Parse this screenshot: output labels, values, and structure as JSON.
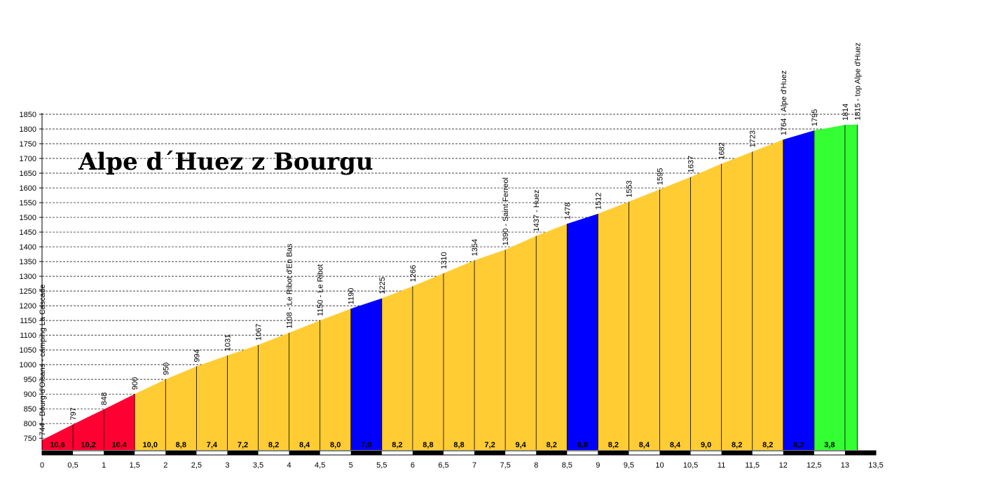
{
  "chart_data": {
    "type": "area",
    "title": "Alpe d´Huez z Bourgu",
    "xlabel": "",
    "ylabel": "",
    "xlim": [
      0,
      13.5
    ],
    "ylim": [
      710,
      1850
    ],
    "yticks": [
      750,
      800,
      850,
      900,
      950,
      1000,
      1050,
      1100,
      1150,
      1200,
      1250,
      1300,
      1350,
      1400,
      1450,
      1500,
      1550,
      1600,
      1650,
      1700,
      1750,
      1800,
      1850
    ],
    "xticks": [
      {
        "v": 0,
        "label": "0"
      },
      {
        "v": 0.5,
        "label": "0,5"
      },
      {
        "v": 1,
        "label": "1"
      },
      {
        "v": 1.5,
        "label": "1,5"
      },
      {
        "v": 2,
        "label": "2"
      },
      {
        "v": 2.5,
        "label": "2,5"
      },
      {
        "v": 3,
        "label": "3"
      },
      {
        "v": 3.5,
        "label": "3,5"
      },
      {
        "v": 4,
        "label": "4"
      },
      {
        "v": 4.5,
        "label": "4,5"
      },
      {
        "v": 5,
        "label": "5"
      },
      {
        "v": 5.5,
        "label": "5,5"
      },
      {
        "v": 6,
        "label": "6"
      },
      {
        "v": 6.5,
        "label": "6,5"
      },
      {
        "v": 7,
        "label": "7"
      },
      {
        "v": 7.5,
        "label": "7,5"
      },
      {
        "v": 8,
        "label": "8"
      },
      {
        "v": 8.5,
        "label": "8,5"
      },
      {
        "v": 9,
        "label": "9"
      },
      {
        "v": 9.5,
        "label": "9,5"
      },
      {
        "v": 10,
        "label": "10"
      },
      {
        "v": 10.5,
        "label": "10,5"
      },
      {
        "v": 11,
        "label": "11"
      },
      {
        "v": 11.5,
        "label": "11,5"
      },
      {
        "v": 12,
        "label": "12"
      },
      {
        "v": 12.5,
        "label": "12,5"
      },
      {
        "v": 13,
        "label": "13"
      },
      {
        "v": 13.5,
        "label": "13,5"
      }
    ],
    "points": [
      {
        "x": 0,
        "y": 744,
        "label": "744 - Bourg d'Oisans - camping La Cascade"
      },
      {
        "x": 0.5,
        "y": 797,
        "label": "797"
      },
      {
        "x": 1,
        "y": 848,
        "label": "848"
      },
      {
        "x": 1.5,
        "y": 900,
        "label": "900"
      },
      {
        "x": 2,
        "y": 950,
        "label": "950"
      },
      {
        "x": 2.5,
        "y": 994,
        "label": "994"
      },
      {
        "x": 3,
        "y": 1031,
        "label": "1031"
      },
      {
        "x": 3.5,
        "y": 1067,
        "label": "1067"
      },
      {
        "x": 4,
        "y": 1108,
        "label": "1108 - Le Ribot d'En Bas"
      },
      {
        "x": 4.5,
        "y": 1150,
        "label": "1150 - Le Ribot"
      },
      {
        "x": 5,
        "y": 1190,
        "label": "1190"
      },
      {
        "x": 5.5,
        "y": 1225,
        "label": "1225"
      },
      {
        "x": 6,
        "y": 1266,
        "label": "1266"
      },
      {
        "x": 6.5,
        "y": 1310,
        "label": "1310"
      },
      {
        "x": 7,
        "y": 1354,
        "label": "1354"
      },
      {
        "x": 7.5,
        "y": 1390,
        "label": "1390 - Saint Ferreol"
      },
      {
        "x": 8,
        "y": 1437,
        "label": "1437 - Huez"
      },
      {
        "x": 8.5,
        "y": 1478,
        "label": "1478"
      },
      {
        "x": 9,
        "y": 1512,
        "label": "1512"
      },
      {
        "x": 9.5,
        "y": 1553,
        "label": "1553"
      },
      {
        "x": 10,
        "y": 1595,
        "label": "1595"
      },
      {
        "x": 10.5,
        "y": 1637,
        "label": "1637"
      },
      {
        "x": 11,
        "y": 1682,
        "label": "1682"
      },
      {
        "x": 11.5,
        "y": 1723,
        "label": "1723"
      },
      {
        "x": 12,
        "y": 1764,
        "label": "1764 - Alpe d'Huez"
      },
      {
        "x": 12.5,
        "y": 1795,
        "label": "1795"
      },
      {
        "x": 13,
        "y": 1814,
        "label": "1814"
      },
      {
        "x": 13.2,
        "y": 1815,
        "label": "1815 - top Alpe d'Huez"
      }
    ],
    "segments": [
      {
        "from": 0,
        "to": 0.5,
        "gradient": "10,6",
        "color": "#ff0033"
      },
      {
        "from": 0.5,
        "to": 1,
        "gradient": "10,2",
        "color": "#ff0033"
      },
      {
        "from": 1,
        "to": 1.5,
        "gradient": "10,4",
        "color": "#ff0033"
      },
      {
        "from": 1.5,
        "to": 2,
        "gradient": "10,0",
        "color": "#ffcc33"
      },
      {
        "from": 2,
        "to": 2.5,
        "gradient": "8,8",
        "color": "#ffcc33"
      },
      {
        "from": 2.5,
        "to": 3,
        "gradient": "7,4",
        "color": "#ffcc33"
      },
      {
        "from": 3,
        "to": 3.5,
        "gradient": "7,2",
        "color": "#ffcc33"
      },
      {
        "from": 3.5,
        "to": 4,
        "gradient": "8,2",
        "color": "#ffcc33"
      },
      {
        "from": 4,
        "to": 4.5,
        "gradient": "8,4",
        "color": "#ffcc33"
      },
      {
        "from": 4.5,
        "to": 5,
        "gradient": "8,0",
        "color": "#ffcc33"
      },
      {
        "from": 5,
        "to": 5.5,
        "gradient": "7,0",
        "color": "#0000ff"
      },
      {
        "from": 5.5,
        "to": 6,
        "gradient": "8,2",
        "color": "#ffcc33"
      },
      {
        "from": 6,
        "to": 6.5,
        "gradient": "8,8",
        "color": "#ffcc33"
      },
      {
        "from": 6.5,
        "to": 7,
        "gradient": "8,8",
        "color": "#ffcc33"
      },
      {
        "from": 7,
        "to": 7.5,
        "gradient": "7,2",
        "color": "#ffcc33"
      },
      {
        "from": 7.5,
        "to": 8,
        "gradient": "9,4",
        "color": "#ffcc33"
      },
      {
        "from": 8,
        "to": 8.5,
        "gradient": "8,2",
        "color": "#ffcc33"
      },
      {
        "from": 8.5,
        "to": 9,
        "gradient": "6,8",
        "color": "#0000ff"
      },
      {
        "from": 9,
        "to": 9.5,
        "gradient": "8,2",
        "color": "#ffcc33"
      },
      {
        "from": 9.5,
        "to": 10,
        "gradient": "8,4",
        "color": "#ffcc33"
      },
      {
        "from": 10,
        "to": 10.5,
        "gradient": "8,4",
        "color": "#ffcc33"
      },
      {
        "from": 10.5,
        "to": 11,
        "gradient": "9,0",
        "color": "#ffcc33"
      },
      {
        "from": 11,
        "to": 11.5,
        "gradient": "8,2",
        "color": "#ffcc33"
      },
      {
        "from": 11.5,
        "to": 12,
        "gradient": "8,2",
        "color": "#ffcc33"
      },
      {
        "from": 12,
        "to": 12.5,
        "gradient": "6,2",
        "color": "#0000ff"
      },
      {
        "from": 12.5,
        "to": 13,
        "gradient": "3,8",
        "color": "#33ff33"
      },
      {
        "from": 13,
        "to": 13.2,
        "gradient": "",
        "color": "#33ff33"
      }
    ],
    "grid": true,
    "legend": "none"
  }
}
